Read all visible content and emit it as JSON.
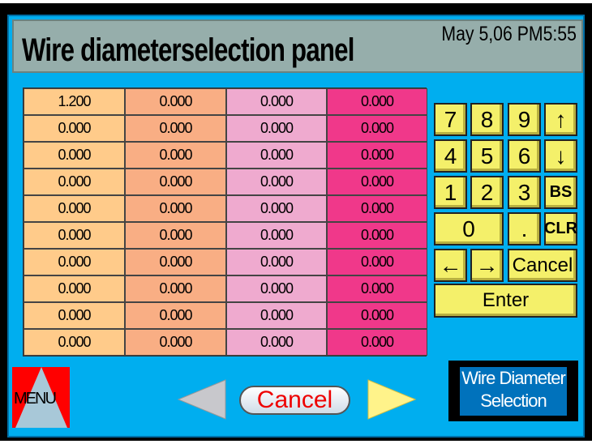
{
  "header": {
    "title": "Wire diameterselection panel",
    "datetime": "May 5,06 PM5:55"
  },
  "table": {
    "column_colors": [
      "#FFCB8A",
      "#F9AE84",
      "#EFAACF",
      "#F0388A"
    ],
    "rows": [
      [
        "1.200",
        "0.000",
        "0.000",
        "0.000"
      ],
      [
        "0.000",
        "0.000",
        "0.000",
        "0.000"
      ],
      [
        "0.000",
        "0.000",
        "0.000",
        "0.000"
      ],
      [
        "0.000",
        "0.000",
        "0.000",
        "0.000"
      ],
      [
        "0.000",
        "0.000",
        "0.000",
        "0.000"
      ],
      [
        "0.000",
        "0.000",
        "0.000",
        "0.000"
      ],
      [
        "0.000",
        "0.000",
        "0.000",
        "0.000"
      ],
      [
        "0.000",
        "0.000",
        "0.000",
        "0.000"
      ],
      [
        "0.000",
        "0.000",
        "0.000",
        "0.000"
      ],
      [
        "0.000",
        "0.000",
        "0.000",
        "0.000"
      ]
    ]
  },
  "keypad": {
    "k7": "7",
    "k8": "8",
    "k9": "9",
    "up": "↑",
    "k4": "4",
    "k5": "5",
    "k6": "6",
    "down": "↓",
    "k1": "1",
    "k2": "2",
    "k3": "3",
    "bs": "BS",
    "k0": "0",
    "dot": ".",
    "clr": "CLR",
    "left": "←",
    "right": "→",
    "cancel": "Cancel",
    "enter": "Enter"
  },
  "footer": {
    "menu": "MENU",
    "cancel": "Cancel",
    "screen_button": "Wire Diameter Selection"
  }
}
